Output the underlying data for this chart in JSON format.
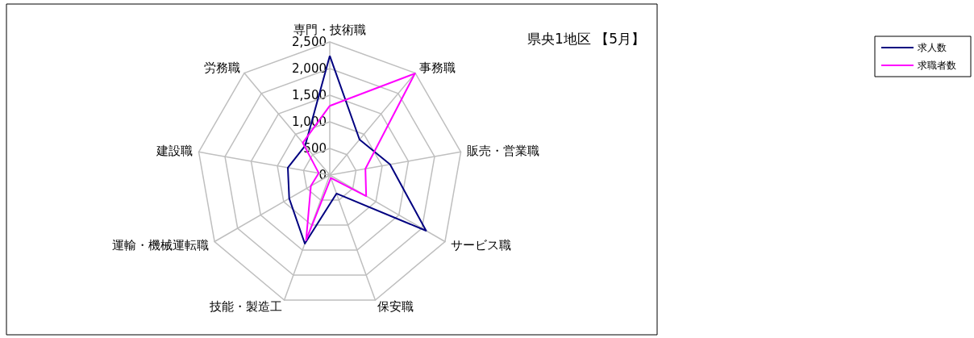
{
  "chart_data": {
    "type": "radar",
    "title": "県央1地区 【5月】",
    "categories": [
      "専門・技術職",
      "事務職",
      "販売・営業職",
      "サービス職",
      "保安職",
      "技能・製造工",
      "運輸・機械運転職",
      "建設職",
      "労務職"
    ],
    "series": [
      {
        "name": "求人数",
        "color": "#000080",
        "values": [
          2240,
          870,
          1150,
          2090,
          370,
          1370,
          880,
          800,
          720
        ]
      },
      {
        "name": "求職者数",
        "color": "#ff00ff",
        "values": [
          1300,
          2490,
          680,
          790,
          60,
          1300,
          410,
          210,
          790
        ]
      }
    ],
    "ylim": [
      0,
      2500
    ],
    "yticks": [
      0,
      500,
      {
        "value": 1000,
        "label": "1,000"
      },
      {
        "value": 1500,
        "label": "1,500"
      },
      {
        "value": 2000,
        "label": "2,000"
      },
      {
        "value": 2500,
        "label": "2,500"
      }
    ],
    "grid": true,
    "legend": "right",
    "marker": "none",
    "line_style": "solid"
  }
}
